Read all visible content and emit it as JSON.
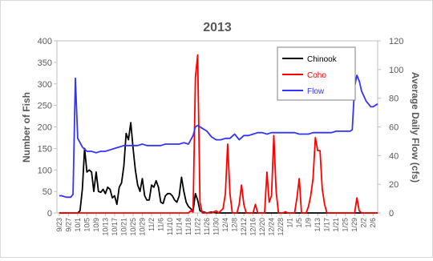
{
  "chart_data": {
    "type": "line",
    "title": "2013",
    "xlabel": "",
    "ylabel": "Number of Fish",
    "y2label": "Average Daily Flow (cfs)",
    "ylim": [
      0,
      400
    ],
    "y2lim": [
      0,
      120
    ],
    "yticks": [
      "0",
      "50",
      "100",
      "150",
      "200",
      "250",
      "300",
      "350",
      "400"
    ],
    "y2ticks": [
      "0",
      "20",
      "40",
      "60",
      "80",
      "100",
      "120"
    ],
    "legend_position": "top-right",
    "grid": "none",
    "start_date": "2013-09-23",
    "x_tick_labels": [
      "9/23",
      "9/27",
      "10/1",
      "10/5",
      "10/9",
      "10/13",
      "10/17",
      "10/21",
      "10/25",
      "10/29",
      "11/2",
      "11/6",
      "11/10",
      "11/14",
      "11/18",
      "11/22",
      "11/26",
      "11/30",
      "12/4",
      "12/8",
      "12/12",
      "12/16",
      "12/20",
      "12/24",
      "12/28",
      "1/1",
      "1/5",
      "1/9",
      "1/13",
      "1/17",
      "1/21",
      "1/25",
      "1/29",
      "2/2",
      "2/6"
    ],
    "series": [
      {
        "name": "Chinook",
        "axis": "left",
        "color": "#000000",
        "points": [
          [
            "9/23",
            0
          ],
          [
            "10/1",
            0
          ],
          [
            "10/2",
            5
          ],
          [
            "10/3",
            55
          ],
          [
            "10/4",
            150
          ],
          [
            "10/5",
            95
          ],
          [
            "10/6",
            100
          ],
          [
            "10/7",
            95
          ],
          [
            "10/8",
            50
          ],
          [
            "10/9",
            95
          ],
          [
            "10/10",
            50
          ],
          [
            "10/11",
            48
          ],
          [
            "10/12",
            55
          ],
          [
            "10/13",
            45
          ],
          [
            "10/14",
            60
          ],
          [
            "10/15",
            55
          ],
          [
            "10/16",
            35
          ],
          [
            "10/17",
            40
          ],
          [
            "10/18",
            20
          ],
          [
            "10/19",
            60
          ],
          [
            "10/20",
            70
          ],
          [
            "10/21",
            110
          ],
          [
            "10/22",
            185
          ],
          [
            "10/23",
            170
          ],
          [
            "10/24",
            210
          ],
          [
            "10/25",
            150
          ],
          [
            "10/26",
            100
          ],
          [
            "10/27",
            65
          ],
          [
            "10/28",
            50
          ],
          [
            "10/29",
            80
          ],
          [
            "10/30",
            40
          ],
          [
            "10/31",
            30
          ],
          [
            "11/1",
            30
          ],
          [
            "11/2",
            65
          ],
          [
            "11/3",
            60
          ],
          [
            "11/4",
            75
          ],
          [
            "11/5",
            60
          ],
          [
            "11/6",
            25
          ],
          [
            "11/7",
            22
          ],
          [
            "11/8",
            40
          ],
          [
            "11/9",
            45
          ],
          [
            "11/10",
            45
          ],
          [
            "11/11",
            40
          ],
          [
            "11/12",
            30
          ],
          [
            "11/13",
            25
          ],
          [
            "11/14",
            40
          ],
          [
            "11/15",
            83
          ],
          [
            "11/16",
            50
          ],
          [
            "11/17",
            25
          ],
          [
            "11/18",
            15
          ],
          [
            "11/19",
            10
          ],
          [
            "11/20",
            5
          ],
          [
            "11/21",
            45
          ],
          [
            "11/22",
            30
          ],
          [
            "11/23",
            5
          ],
          [
            "11/24",
            3
          ],
          [
            "11/26",
            0
          ],
          [
            "11/28",
            2
          ],
          [
            "11/30",
            0
          ],
          [
            "2/8",
            0
          ]
        ]
      },
      {
        "name": "Coho",
        "axis": "left",
        "color": "#ff0000",
        "points": [
          [
            "9/23",
            0
          ],
          [
            "11/18",
            0
          ],
          [
            "11/19",
            5
          ],
          [
            "11/20",
            2
          ],
          [
            "11/21",
            315
          ],
          [
            "11/22",
            367
          ],
          [
            "11/23",
            25
          ],
          [
            "11/24",
            0
          ],
          [
            "11/28",
            0
          ],
          [
            "11/30",
            5
          ],
          [
            "12/1",
            0
          ],
          [
            "12/3",
            10
          ],
          [
            "12/4",
            45
          ],
          [
            "12/5",
            160
          ],
          [
            "12/6",
            45
          ],
          [
            "12/7",
            0
          ],
          [
            "12/9",
            0
          ],
          [
            "12/10",
            20
          ],
          [
            "12/11",
            65
          ],
          [
            "12/12",
            20
          ],
          [
            "12/13",
            0
          ],
          [
            "12/16",
            0
          ],
          [
            "12/17",
            20
          ],
          [
            "12/18",
            0
          ],
          [
            "12/21",
            0
          ],
          [
            "12/22",
            95
          ],
          [
            "12/23",
            25
          ],
          [
            "12/24",
            40
          ],
          [
            "12/25",
            180
          ],
          [
            "12/26",
            50
          ],
          [
            "12/27",
            0
          ],
          [
            "12/29",
            0
          ],
          [
            "12/30",
            3
          ],
          [
            "12/31",
            0
          ],
          [
            "1/3",
            0
          ],
          [
            "1/4",
            35
          ],
          [
            "1/5",
            80
          ],
          [
            "1/6",
            0
          ],
          [
            "1/8",
            0
          ],
          [
            "1/9",
            15
          ],
          [
            "1/10",
            40
          ],
          [
            "1/11",
            80
          ],
          [
            "1/12",
            175
          ],
          [
            "1/13",
            145
          ],
          [
            "1/14",
            145
          ],
          [
            "1/15",
            55
          ],
          [
            "1/16",
            20
          ],
          [
            "1/17",
            0
          ],
          [
            "1/29",
            0
          ],
          [
            "1/30",
            35
          ],
          [
            "1/31",
            5
          ],
          [
            "2/1",
            0
          ],
          [
            "2/8",
            0
          ]
        ]
      },
      {
        "name": "Flow",
        "axis": "right",
        "color": "#3333ff",
        "points": [
          [
            "9/23",
            12
          ],
          [
            "9/24",
            12
          ],
          [
            "9/26",
            11
          ],
          [
            "9/28",
            11
          ],
          [
            "9/29",
            13
          ],
          [
            "9/30",
            94
          ],
          [
            "10/1",
            52
          ],
          [
            "10/3",
            46
          ],
          [
            "10/5",
            43
          ],
          [
            "10/7",
            43
          ],
          [
            "10/9",
            42
          ],
          [
            "10/11",
            43
          ],
          [
            "10/13",
            43
          ],
          [
            "10/15",
            44
          ],
          [
            "10/17",
            45
          ],
          [
            "10/19",
            46
          ],
          [
            "10/21",
            47
          ],
          [
            "10/23",
            47
          ],
          [
            "10/25",
            47
          ],
          [
            "10/27",
            47
          ],
          [
            "10/29",
            48
          ],
          [
            "10/31",
            47
          ],
          [
            "11/2",
            47
          ],
          [
            "11/4",
            47
          ],
          [
            "11/6",
            47
          ],
          [
            "11/8",
            48
          ],
          [
            "11/10",
            48
          ],
          [
            "11/12",
            48
          ],
          [
            "11/14",
            48
          ],
          [
            "11/16",
            49
          ],
          [
            "11/18",
            48
          ],
          [
            "11/20",
            54
          ],
          [
            "11/21",
            60
          ],
          [
            "11/22",
            61
          ],
          [
            "11/24",
            59
          ],
          [
            "11/26",
            57
          ],
          [
            "11/28",
            53
          ],
          [
            "11/30",
            51
          ],
          [
            "12/2",
            51
          ],
          [
            "12/4",
            52
          ],
          [
            "12/6",
            52
          ],
          [
            "12/8",
            55
          ],
          [
            "12/10",
            51
          ],
          [
            "12/12",
            54
          ],
          [
            "12/14",
            54
          ],
          [
            "12/16",
            55
          ],
          [
            "12/18",
            56
          ],
          [
            "12/20",
            56
          ],
          [
            "12/22",
            55
          ],
          [
            "12/24",
            56
          ],
          [
            "12/26",
            56
          ],
          [
            "12/28",
            56
          ],
          [
            "12/30",
            56
          ],
          [
            "1/1",
            56
          ],
          [
            "1/3",
            56
          ],
          [
            "1/5",
            55
          ],
          [
            "1/7",
            55
          ],
          [
            "1/9",
            55
          ],
          [
            "1/11",
            56
          ],
          [
            "1/13",
            56
          ],
          [
            "1/15",
            56
          ],
          [
            "1/17",
            56
          ],
          [
            "1/19",
            56
          ],
          [
            "1/21",
            57
          ],
          [
            "1/23",
            57
          ],
          [
            "1/25",
            57
          ],
          [
            "1/27",
            57
          ],
          [
            "1/28",
            58
          ],
          [
            "1/29",
            88
          ],
          [
            "1/30",
            96
          ],
          [
            "1/31",
            92
          ],
          [
            "2/1",
            85
          ],
          [
            "2/3",
            78
          ],
          [
            "2/5",
            74
          ],
          [
            "2/6",
            74
          ],
          [
            "2/8",
            76
          ]
        ]
      }
    ]
  }
}
